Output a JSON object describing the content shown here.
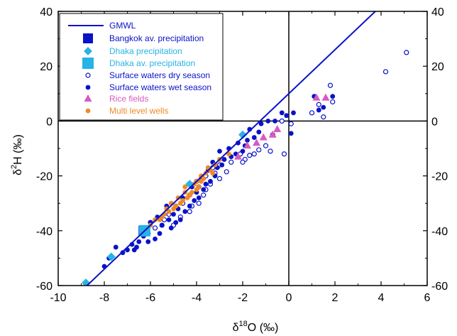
{
  "chart_data": {
    "type": "scatter",
    "xlabel_main": "δ",
    "xlabel_sup": "18",
    "xlabel_rest": "O (‰)",
    "ylabel_main": "δ",
    "ylabel_sup": "2",
    "ylabel_rest": "H (‰)",
    "xlim": [
      -10,
      6
    ],
    "ylim": [
      -60,
      40
    ],
    "xticks": [
      -10,
      -8,
      -6,
      -4,
      -2,
      0,
      2,
      4,
      6
    ],
    "yticks": [
      -60,
      -40,
      -20,
      0,
      20,
      40
    ],
    "grid": false,
    "reference_lines": {
      "x": 0,
      "y": 0
    },
    "legend_position": "top-left",
    "colors": {
      "gmwl": "#0a12c8",
      "bangkok": "#0a12c8",
      "dhaka": "#27b3e6",
      "dry": "#0a12c8",
      "wet": "#0a12c8",
      "rice": "#d65bbf",
      "wells": "#f08a24"
    },
    "series": [
      {
        "name": "GMWL",
        "kind": "line",
        "x": [
          -8.75,
          -0.5,
          4
        ],
        "y": [
          -60,
          6,
          42
        ]
      },
      {
        "name": "Bangkok av. precipitation",
        "kind": "filled-square",
        "points": [
          [
            -6.3,
            -40
          ]
        ]
      },
      {
        "name": "Dhaka precipitation",
        "kind": "diamond",
        "points": [
          [
            -8.8,
            -59
          ],
          [
            -7.7,
            -49.5
          ],
          [
            -4.3,
            -23
          ],
          [
            -2.0,
            -5
          ]
        ]
      },
      {
        "name": "Dhaka av. precipitation",
        "kind": "big-square",
        "points": [
          [
            -6.25,
            -40
          ]
        ]
      },
      {
        "name": "Surface waters dry season",
        "kind": "open-circle",
        "points": [
          [
            5.1,
            25
          ],
          [
            4.2,
            18
          ],
          [
            1.8,
            13
          ],
          [
            1.5,
            1.5
          ],
          [
            1.0,
            3
          ],
          [
            1.9,
            7
          ],
          [
            1.3,
            6
          ],
          [
            0.1,
            -1
          ],
          [
            -0.2,
            -12
          ],
          [
            -0.3,
            0
          ],
          [
            -0.7,
            -5
          ],
          [
            -0.8,
            -11
          ],
          [
            -1.0,
            -9
          ],
          [
            -1.3,
            -10.5
          ],
          [
            -1.5,
            -12
          ],
          [
            -1.7,
            -12.5
          ],
          [
            -1.9,
            -14
          ],
          [
            -2.0,
            -15
          ],
          [
            -2.1,
            -12
          ],
          [
            -2.5,
            -15
          ],
          [
            -2.7,
            -18.5
          ],
          [
            -3.0,
            -16
          ],
          [
            -3.0,
            -21
          ],
          [
            -3.2,
            -19
          ],
          [
            -3.3,
            -17
          ],
          [
            -3.4,
            -23
          ],
          [
            -3.6,
            -20
          ],
          [
            -3.6,
            -25
          ],
          [
            -3.7,
            -27
          ],
          [
            -3.9,
            -24
          ],
          [
            -3.9,
            -30
          ],
          [
            -4.0,
            -22
          ],
          [
            -4.2,
            -31
          ],
          [
            -4.3,
            -27
          ],
          [
            -4.3,
            -33
          ],
          [
            -4.6,
            -30
          ],
          [
            -4.7,
            -35
          ],
          [
            -4.9,
            -31
          ],
          [
            -5.0,
            -38
          ],
          [
            -5.2,
            -34
          ],
          [
            -5.4,
            -36
          ],
          [
            -5.5,
            -38
          ],
          [
            -5.8,
            -39
          ],
          [
            -6.0,
            -37
          ],
          [
            -6.1,
            -41
          ]
        ]
      },
      {
        "name": "Surface waters wet season",
        "kind": "filled-circle",
        "points": [
          [
            1.9,
            9
          ],
          [
            1.5,
            5
          ],
          [
            1.3,
            4
          ],
          [
            1.1,
            9
          ],
          [
            0.2,
            3
          ],
          [
            0.1,
            -4.5
          ],
          [
            -0.1,
            2
          ],
          [
            -0.3,
            3
          ],
          [
            -0.6,
            0
          ],
          [
            -0.9,
            0
          ],
          [
            -1.2,
            -1
          ],
          [
            -1.3,
            -4
          ],
          [
            -1.5,
            -6
          ],
          [
            -1.7,
            -3
          ],
          [
            -1.8,
            -7
          ],
          [
            -1.9,
            -9
          ],
          [
            -2.0,
            -11
          ],
          [
            -2.2,
            -8
          ],
          [
            -2.3,
            -12
          ],
          [
            -2.5,
            -13
          ],
          [
            -2.6,
            -10
          ],
          [
            -2.8,
            -14
          ],
          [
            -2.9,
            -16
          ],
          [
            -3.0,
            -11
          ],
          [
            -3.1,
            -17
          ],
          [
            -3.2,
            -20
          ],
          [
            -3.3,
            -15
          ],
          [
            -3.4,
            -22
          ],
          [
            -3.5,
            -18
          ],
          [
            -3.6,
            -23
          ],
          [
            -3.7,
            -25
          ],
          [
            -3.8,
            -21
          ],
          [
            -3.9,
            -28
          ],
          [
            -4.0,
            -26
          ],
          [
            -4.1,
            -29
          ],
          [
            -4.2,
            -24
          ],
          [
            -4.3,
            -31
          ],
          [
            -4.5,
            -33
          ],
          [
            -4.6,
            -28
          ],
          [
            -4.7,
            -36
          ],
          [
            -4.8,
            -32
          ],
          [
            -4.9,
            -37
          ],
          [
            -5.0,
            -34
          ],
          [
            -5.1,
            -39
          ],
          [
            -5.2,
            -36
          ],
          [
            -5.3,
            -31
          ],
          [
            -5.5,
            -38
          ],
          [
            -5.6,
            -41
          ],
          [
            -5.7,
            -35
          ],
          [
            -5.8,
            -43
          ],
          [
            -6.0,
            -37
          ],
          [
            -6.1,
            -44
          ],
          [
            -6.3,
            -42
          ],
          [
            -6.5,
            -44
          ],
          [
            -6.6,
            -46
          ],
          [
            -6.7,
            -47
          ],
          [
            -6.8,
            -45
          ],
          [
            -7.0,
            -47
          ],
          [
            -7.2,
            -48
          ],
          [
            -7.5,
            -46
          ],
          [
            -7.8,
            -50
          ],
          [
            -8.0,
            -53
          ]
        ]
      },
      {
        "name": "Rice fields",
        "kind": "triangle",
        "points": [
          [
            1.6,
            8.5
          ],
          [
            1.2,
            8.5
          ],
          [
            -0.5,
            -3
          ],
          [
            -0.7,
            -5
          ],
          [
            -1.1,
            -6
          ],
          [
            -1.4,
            -8
          ],
          [
            -1.8,
            -9
          ],
          [
            -2.2,
            -13
          ]
        ]
      },
      {
        "name": "Multi level wells",
        "kind": "small-filled-circle",
        "points": [
          [
            -2.6,
            -12
          ],
          [
            -3.0,
            -14
          ],
          [
            -3.2,
            -16
          ],
          [
            -3.4,
            -18
          ],
          [
            -3.6,
            -19
          ],
          [
            -3.7,
            -21
          ],
          [
            -3.8,
            -22
          ],
          [
            -3.9,
            -24
          ],
          [
            -4.0,
            -25
          ],
          [
            -4.1,
            -23
          ],
          [
            -4.2,
            -26
          ],
          [
            -4.3,
            -27
          ],
          [
            -4.4,
            -28
          ],
          [
            -4.5,
            -26
          ],
          [
            -4.6,
            -29
          ],
          [
            -4.7,
            -30
          ],
          [
            -4.8,
            -28
          ],
          [
            -4.9,
            -31
          ],
          [
            -5.0,
            -32
          ],
          [
            -5.2,
            -33
          ],
          [
            -5.3,
            -32
          ],
          [
            -5.4,
            -34
          ],
          [
            -5.5,
            -35
          ],
          [
            -5.6,
            -36
          ],
          [
            -5.8,
            -36
          ],
          [
            -6.0,
            -38
          ],
          [
            -3.3,
            -19
          ],
          [
            -3.5,
            -17
          ],
          [
            -3.8,
            -20
          ],
          [
            -4.0,
            -22
          ],
          [
            -4.5,
            -24
          ],
          [
            -5.1,
            -30
          ]
        ]
      }
    ]
  }
}
